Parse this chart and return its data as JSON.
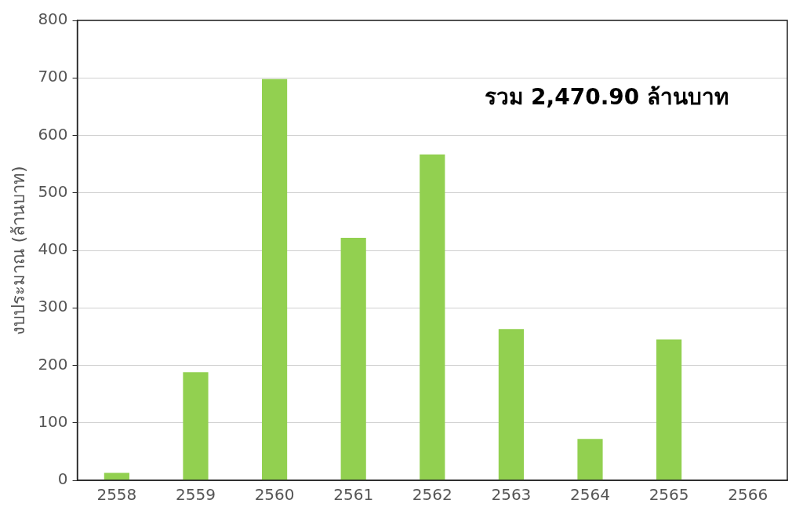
{
  "chart_data": {
    "type": "bar",
    "ylabel": "งบประมาณ (ล้านบาท)",
    "categories": [
      "2558",
      "2559",
      "2560",
      "2561",
      "2562",
      "2563",
      "2564",
      "2565",
      "2566"
    ],
    "values": [
      13,
      188,
      698,
      422,
      567,
      263,
      72,
      245,
      null
    ],
    "color": "#92d050",
    "ylim": [
      0,
      800
    ],
    "yticks": [
      0,
      100,
      200,
      300,
      400,
      500,
      600,
      700,
      800
    ],
    "grid": "y",
    "annotations": [
      "รวม 2,470.90 ล้านบาท"
    ]
  }
}
